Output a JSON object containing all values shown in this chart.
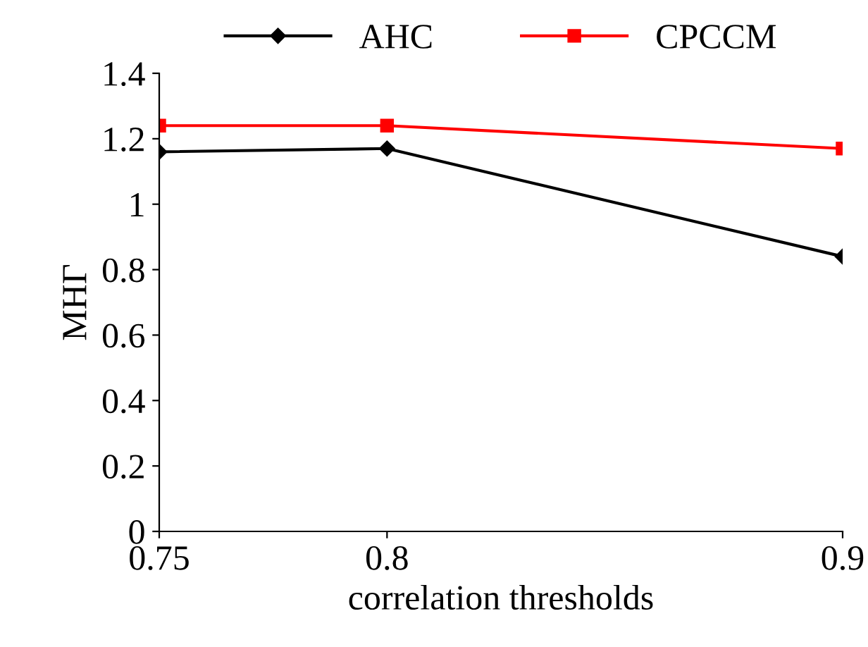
{
  "chart_data": {
    "type": "line",
    "xlabel": "correlation thresholds",
    "ylabel": "MHГ",
    "x": [
      0.75,
      0.8,
      0.9
    ],
    "series": [
      {
        "name": "AHC",
        "color": "#000000",
        "values": [
          1.16,
          1.17,
          0.84
        ],
        "marker": "diamond"
      },
      {
        "name": "CPCCM",
        "color": "#ff0000",
        "values": [
          1.24,
          1.24,
          1.17
        ],
        "marker": "square"
      }
    ],
    "xlim": [
      0.75,
      0.9
    ],
    "xticks": [
      0.75,
      0.8,
      0.9
    ],
    "ylim": [
      0,
      1.4
    ],
    "yticks": [
      0,
      0.2,
      0.4,
      0.6,
      0.8,
      1,
      1.2,
      1.4
    ],
    "grid": false,
    "legend": "top",
    "line_style": "solid"
  }
}
